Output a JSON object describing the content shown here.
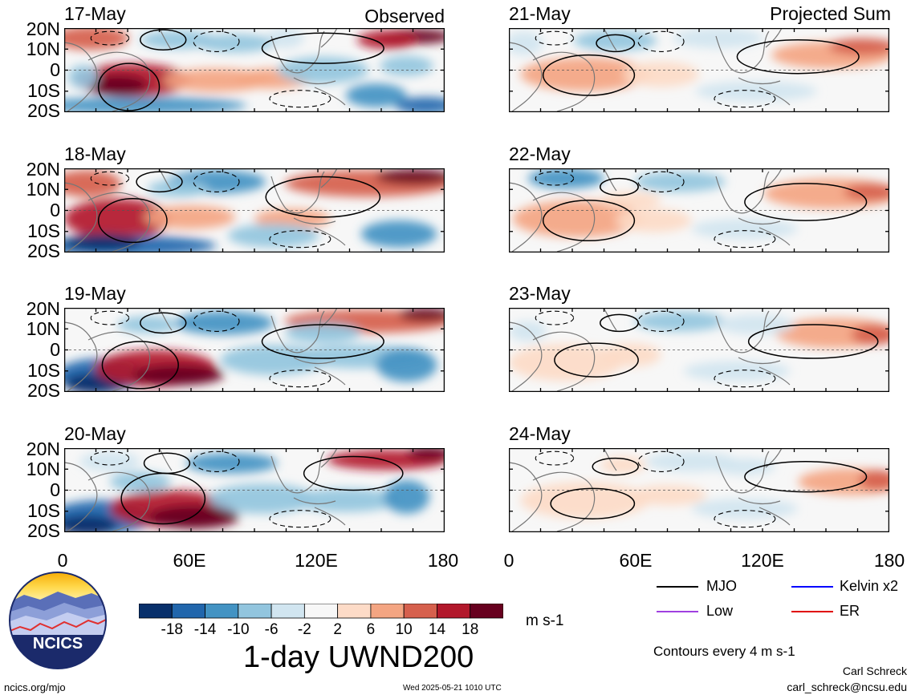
{
  "panels_left": {
    "corner_label": "Observed",
    "dates": [
      "17-May",
      "18-May",
      "19-May",
      "20-May"
    ]
  },
  "panels_right": {
    "corner_label": "Projected Sum",
    "dates": [
      "21-May",
      "22-May",
      "23-May",
      "24-May"
    ]
  },
  "lat_labels": [
    "20N",
    "10N",
    "0",
    "10S",
    "20S"
  ],
  "lon_labels": [
    "0",
    "60E",
    "120E",
    "180"
  ],
  "colorbar": {
    "tick_labels": [
      "-18",
      "-14",
      "-10",
      "-6",
      "-2",
      "2",
      "6",
      "10",
      "14",
      "18"
    ],
    "colors": [
      "#08306b",
      "#2166ac",
      "#4393c3",
      "#92c5de",
      "#d1e5f0",
      "#f7f7f7",
      "#fddbc7",
      "#f4a582",
      "#d6604d",
      "#b2182b",
      "#67001f"
    ],
    "unit": "m s-1",
    "title": "1-day UWND200"
  },
  "legend": {
    "items": [
      {
        "label": "MJO",
        "color": "#000000"
      },
      {
        "label": "Kelvin x2",
        "color": "#0000ff"
      },
      {
        "label": "Low",
        "color": "#a040e0"
      },
      {
        "label": "ER",
        "color": "#e00000"
      }
    ],
    "contour_note": "Contours every 4 m s-1"
  },
  "footer": {
    "author": "Carl Schreck",
    "email": "carl_schreck@ncsu.edu",
    "site": "ncics.org/mjo",
    "timestamp": "Wed 2025-05-21 1010 UTC"
  },
  "logo": {
    "text": "NCICS"
  }
}
